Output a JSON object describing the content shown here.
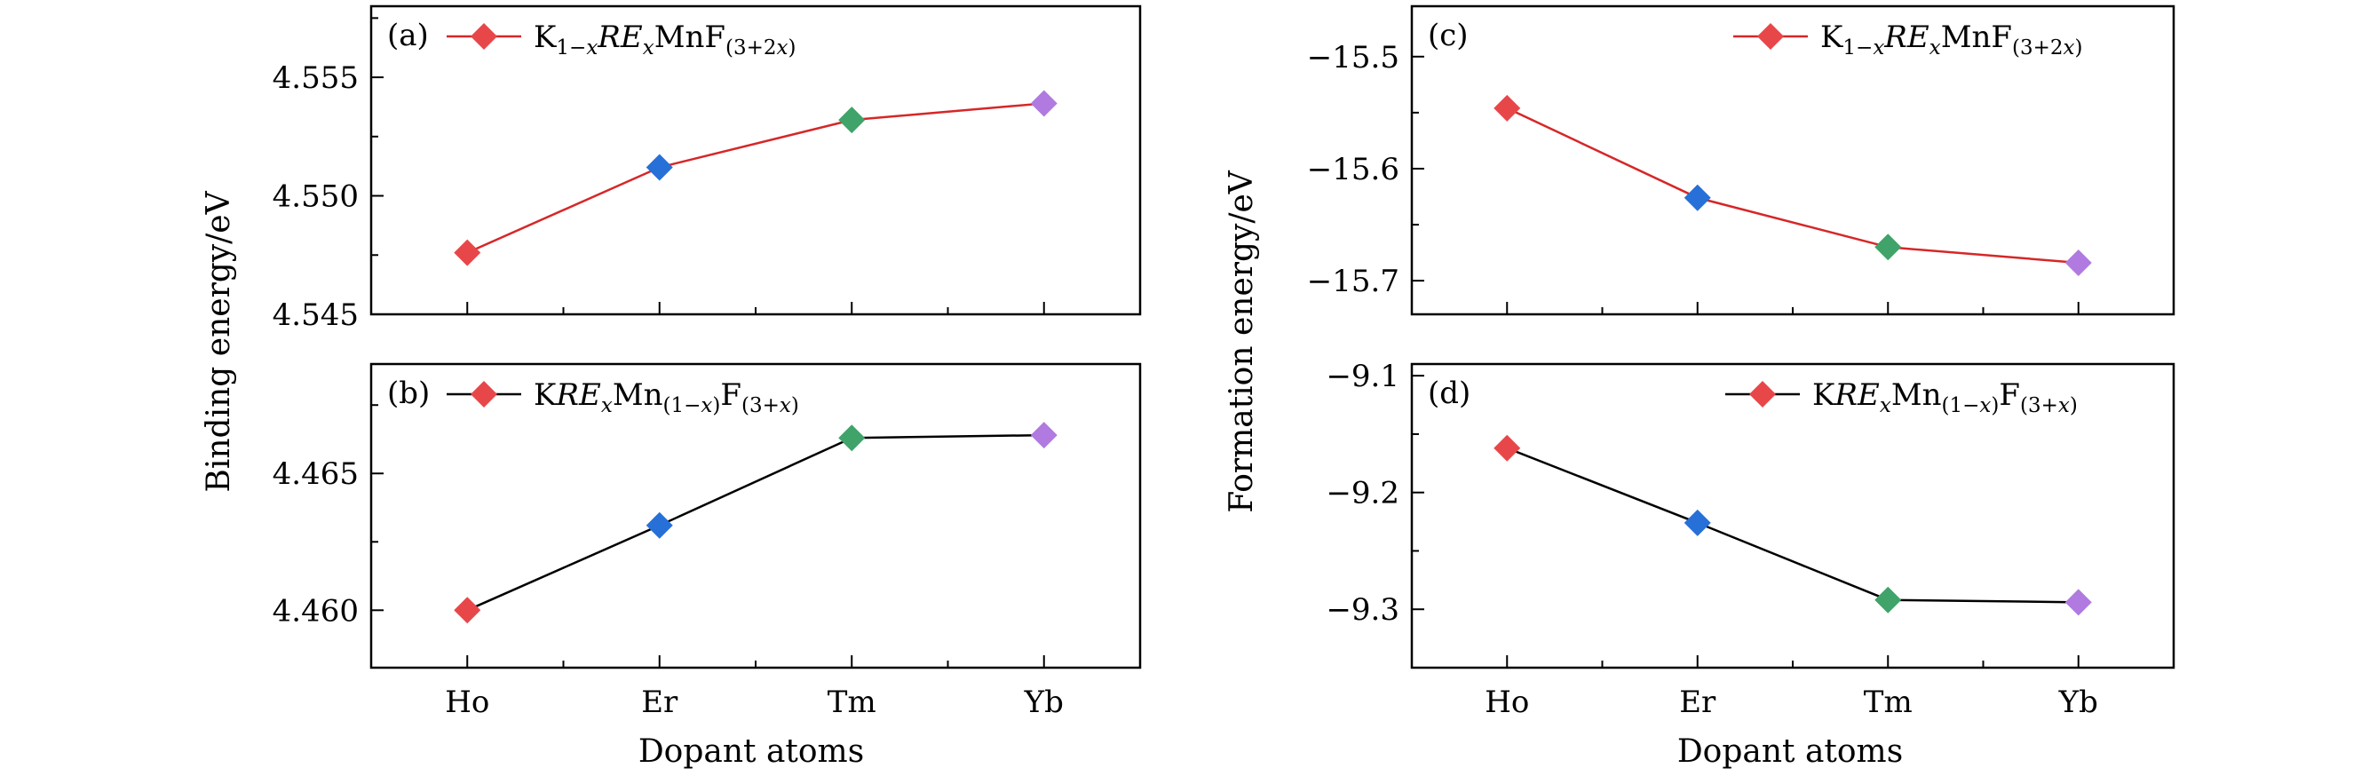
{
  "xlabel": "Dopant atoms",
  "left_ylabel": "Binding energy/eV",
  "right_ylabel": "Formation energy/eV",
  "categories": [
    "Ho",
    "Er",
    "Tm",
    "Yb"
  ],
  "marker_colors": [
    "#e8474a",
    "#2670d8",
    "#3fa36a",
    "#b07ae0"
  ],
  "line_colors": {
    "top": "#d62728",
    "bottom": "#000000"
  },
  "chart_data": [
    {
      "type": "line",
      "panel": "(a)",
      "categories": [
        "Ho",
        "Er",
        "Tm",
        "Yb"
      ],
      "series": [
        {
          "name": "K1−xRExMnF(3+2x)",
          "values": [
            4.5476,
            4.5512,
            4.5532,
            4.5539
          ]
        }
      ],
      "ylabel": "Binding energy/eV",
      "xlabel": "",
      "ylim": [
        4.545,
        4.558
      ],
      "yticks": [
        "4.545",
        "4.550",
        "4.555"
      ],
      "legend": "top-left",
      "grid": false
    },
    {
      "type": "line",
      "panel": "(b)",
      "categories": [
        "Ho",
        "Er",
        "Tm",
        "Yb"
      ],
      "series": [
        {
          "name": "KRExMn(1−x)F(3+x)",
          "values": [
            4.46,
            4.4631,
            4.4663,
            4.4664
          ]
        }
      ],
      "ylabel": "Binding energy/eV",
      "xlabel": "Dopant atoms",
      "ylim": [
        4.4579,
        4.469
      ],
      "yticks": [
        "4.460",
        "4.465"
      ],
      "legend": "top-left",
      "grid": false
    },
    {
      "type": "line",
      "panel": "(c)",
      "categories": [
        "Ho",
        "Er",
        "Tm",
        "Yb"
      ],
      "series": [
        {
          "name": "K1−xRExMnF(3+2x)",
          "values": [
            -15.546,
            -15.626,
            -15.67,
            -15.684
          ]
        }
      ],
      "ylabel": "Formation energy/eV",
      "xlabel": "",
      "ylim": [
        -15.73,
        -15.455
      ],
      "yticks": [
        "−15.5",
        "−15.6",
        "−15.7"
      ],
      "legend": "top-right",
      "grid": false
    },
    {
      "type": "line",
      "panel": "(d)",
      "categories": [
        "Ho",
        "Er",
        "Tm",
        "Yb"
      ],
      "series": [
        {
          "name": "KRExMn(1−x)F(3+x)",
          "values": [
            -9.162,
            -9.226,
            -9.292,
            -9.294
          ]
        }
      ],
      "ylabel": "Formation energy/eV",
      "xlabel": "Dopant atoms",
      "ylim": [
        -9.35,
        -9.09
      ],
      "yticks": [
        "−9.1",
        "−9.2",
        "−9.3"
      ],
      "legend": "top-right",
      "grid": false
    }
  ]
}
